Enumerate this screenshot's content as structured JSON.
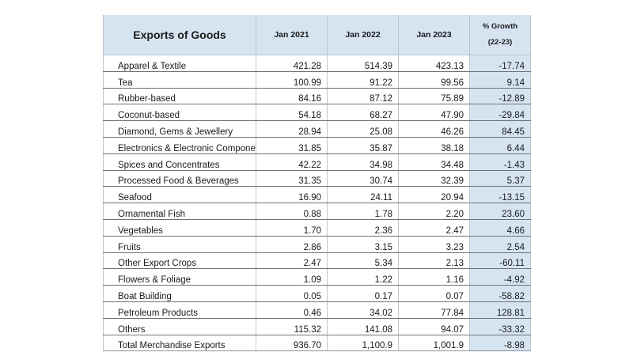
{
  "chart_data": {
    "type": "table",
    "title": "Exports of Goods",
    "columns": [
      "Jan 2021",
      "Jan 2022",
      "Jan 2023"
    ],
    "growth_header_line1": "% Growth",
    "growth_header_line2": "(22-23)",
    "rows": [
      {
        "label": "Apparel & Textile",
        "values": [
          "421.28",
          "514.39",
          "423.13"
        ],
        "growth": "-17.74"
      },
      {
        "label": "Tea",
        "values": [
          "100.99",
          "91.22",
          "99.56"
        ],
        "growth": "9.14"
      },
      {
        "label": "Rubber-based",
        "values": [
          "84.16",
          "87.12",
          "75.89"
        ],
        "growth": "-12.89"
      },
      {
        "label": "Coconut-based",
        "values": [
          "54.18",
          "68.27",
          "47.90"
        ],
        "growth": "-29.84"
      },
      {
        "label": "Diamond, Gems & Jewellery",
        "values": [
          "28.94",
          "25.08",
          "46.26"
        ],
        "growth": "84.45"
      },
      {
        "label": "Electronics & Electronic  Components",
        "values": [
          "31.85",
          "35.87",
          "38.18"
        ],
        "growth": "6.44"
      },
      {
        "label": "Spices and Concentrates",
        "values": [
          "42.22",
          "34.98",
          "34.48"
        ],
        "growth": "-1.43"
      },
      {
        "label": "Processed Food & Beverages",
        "values": [
          "31.35",
          "30.74",
          "32.39"
        ],
        "growth": "5.37"
      },
      {
        "label": "Seafood",
        "values": [
          "16.90",
          "24.11",
          "20.94"
        ],
        "growth": "-13.15"
      },
      {
        "label": "Ornamental Fish",
        "values": [
          "0.88",
          "1.78",
          "2.20"
        ],
        "growth": "23.60"
      },
      {
        "label": "Vegetables",
        "values": [
          "1.70",
          "2.36",
          "2.47"
        ],
        "growth": "4.66"
      },
      {
        "label": "Fruits",
        "values": [
          "2.86",
          "3.15",
          "3.23"
        ],
        "growth": "2.54"
      },
      {
        "label": "Other Export Crops",
        "values": [
          "2.47",
          "5.34",
          "2.13"
        ],
        "growth": "-60.11"
      },
      {
        "label": "Flowers & Foliage",
        "values": [
          "1.09",
          "1.22",
          "1.16"
        ],
        "growth": "-4.92"
      },
      {
        "label": "Boat Building",
        "values": [
          "0.05",
          "0.17",
          "0.07"
        ],
        "growth": "-58.82"
      },
      {
        "label": "Petroleum Products",
        "values": [
          "0.46",
          "34.02",
          "77.84"
        ],
        "growth": "128.81"
      },
      {
        "label": "Others",
        "values": [
          "115.32",
          "141.08",
          "94.07"
        ],
        "growth": "-33.32"
      },
      {
        "label": "Total Merchandise Exports",
        "values": [
          "936.70",
          "1,100.9",
          "1,001.9"
        ],
        "growth": "-8.98"
      }
    ],
    "colors": {
      "header_fill": "#d6e4f2",
      "growth_column_fill": "#d6e4f2",
      "row_rule": "#6e7278"
    }
  }
}
